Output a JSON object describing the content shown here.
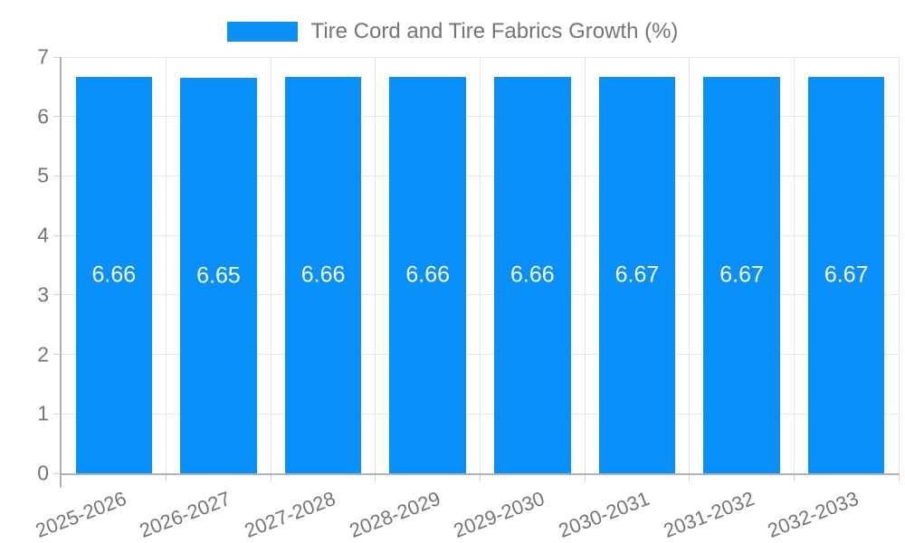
{
  "chart_data": {
    "type": "bar",
    "title": "",
    "legend_label": "Tire Cord and Tire Fabrics Growth (%)",
    "legend_position": "top",
    "categories": [
      "2025-2026",
      "2026-2027",
      "2027-2028",
      "2028-2029",
      "2029-2030",
      "2030-2031",
      "2031-2032",
      "2032-2033"
    ],
    "values": [
      6.66,
      6.65,
      6.66,
      6.66,
      6.66,
      6.67,
      6.67,
      6.67
    ],
    "value_labels": [
      "6.66",
      "6.65",
      "6.66",
      "6.66",
      "6.66",
      "6.67",
      "6.67",
      "6.67"
    ],
    "xlabel": "",
    "ylabel": "",
    "ylim": [
      0,
      7
    ],
    "yticks": [
      0,
      1,
      2,
      3,
      4,
      5,
      6,
      7
    ],
    "ytick_labels": [
      "0",
      "1",
      "2",
      "3",
      "4",
      "5",
      "6",
      "7"
    ],
    "grid": true,
    "x_tick_rotation_deg": -21,
    "colors": {
      "bar": "#0990f8",
      "grid": "#e6e6e6",
      "axis": "#b0b0b0",
      "tick": "#d0d0d0",
      "tick_text": "#757575",
      "legend_text": "#757575",
      "value_text": "#ffffff",
      "background": "#ffffff"
    }
  }
}
